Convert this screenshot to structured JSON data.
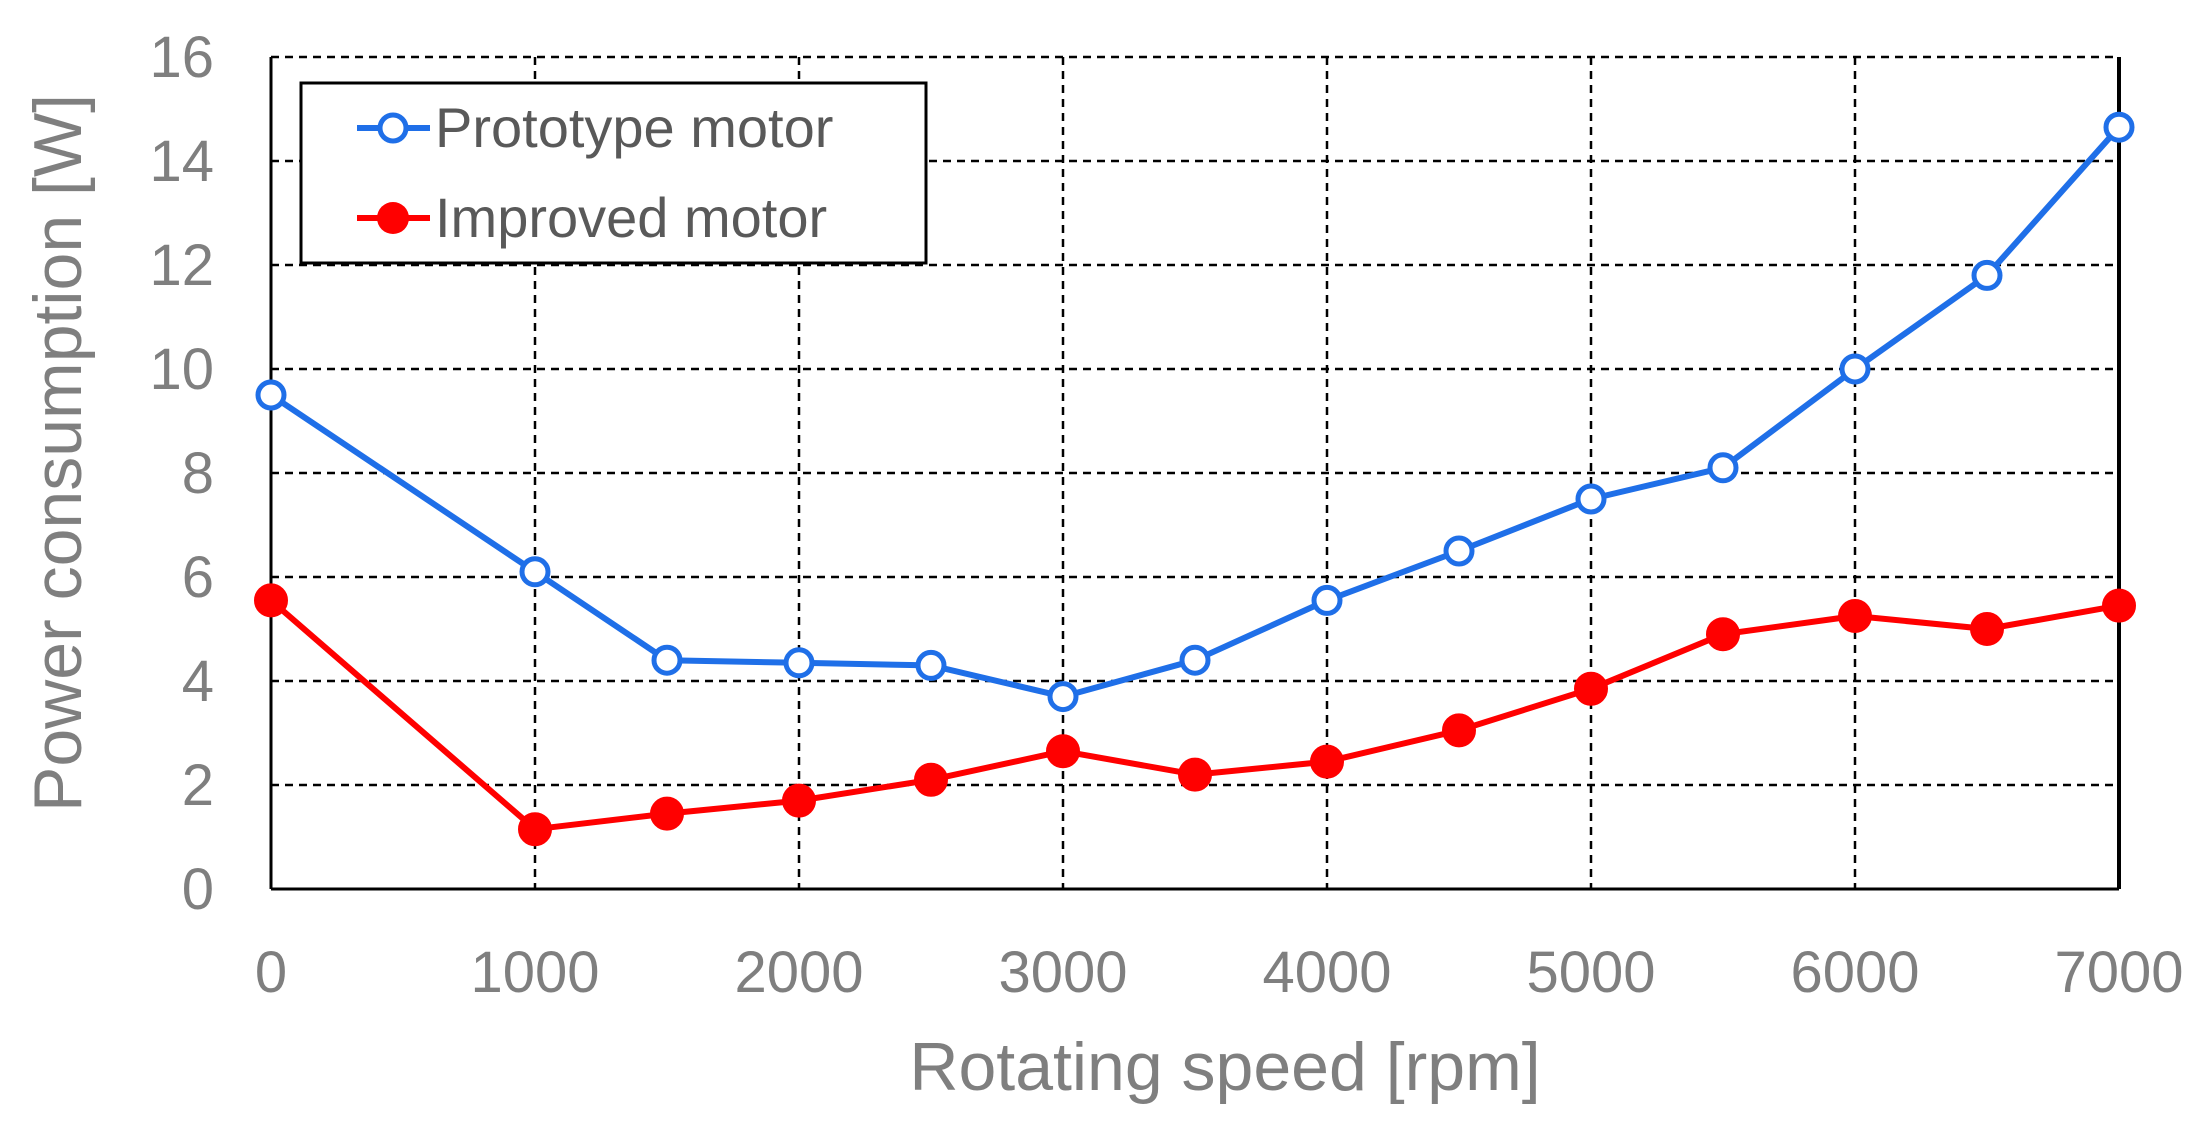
{
  "chart_data": {
    "type": "line",
    "title": "",
    "xlabel": "Rotating speed [rpm]",
    "ylabel": "Power consumption [W]",
    "xlim": [
      0,
      7000
    ],
    "ylim": [
      0,
      16
    ],
    "x_ticks": [
      0,
      1000,
      2000,
      3000,
      4000,
      5000,
      6000,
      7000
    ],
    "y_ticks": [
      0,
      2,
      4,
      6,
      8,
      10,
      12,
      14,
      16
    ],
    "grid": true,
    "legend_position": "top-left",
    "series": [
      {
        "name": "Prototype motor",
        "color": "#1f6fe8",
        "marker": "hollow-circle",
        "x": [
          0,
          1000,
          1500,
          2000,
          2500,
          3000,
          3500,
          4000,
          4500,
          5000,
          5500,
          6000,
          6500,
          7000
        ],
        "values": [
          9.5,
          6.1,
          4.4,
          4.35,
          4.3,
          3.7,
          4.4,
          5.55,
          6.5,
          7.5,
          8.1,
          10.0,
          11.8,
          14.65
        ]
      },
      {
        "name": "Improved motor",
        "color": "#ff0000",
        "marker": "filled-circle",
        "x": [
          0,
          1000,
          1500,
          2000,
          2500,
          3000,
          3500,
          4000,
          4500,
          5000,
          5500,
          6000,
          6500,
          7000
        ],
        "values": [
          5.55,
          1.15,
          1.45,
          1.7,
          2.1,
          2.65,
          2.2,
          2.45,
          3.05,
          3.85,
          4.9,
          5.25,
          5.0,
          5.45
        ]
      }
    ]
  }
}
